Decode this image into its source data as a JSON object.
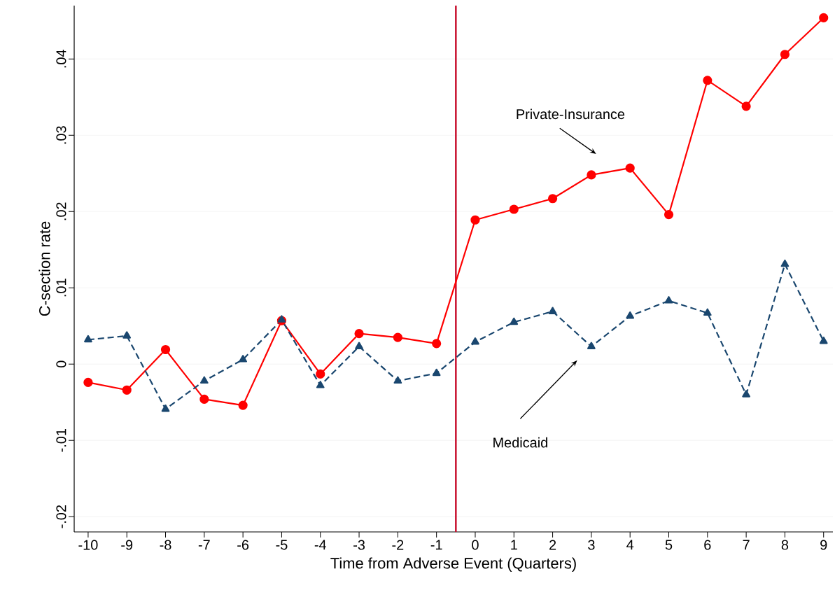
{
  "chart_data": {
    "type": "line",
    "xlabel": "Time from  Adverse Event (Quarters)",
    "ylabel": "C-section rate",
    "x": [
      -10,
      -9,
      -8,
      -7,
      -6,
      -5,
      -4,
      -3,
      -2,
      -1,
      0,
      1,
      2,
      3,
      4,
      5,
      6,
      7,
      8,
      9
    ],
    "series": [
      {
        "color": "#ff0000",
        "marker": "circle",
        "line_style": "solid",
        "values": [
          -0.0024,
          -0.0034,
          0.0019,
          -0.0046,
          -0.0054,
          0.0057,
          -0.0013,
          0.004,
          0.0035,
          0.0027,
          0.0189,
          0.0203,
          0.0217,
          0.0248,
          0.0257,
          0.0196,
          0.0372,
          0.0338,
          0.0406,
          0.0454
        ]
      },
      {
        "color": "#1a476f",
        "marker": "triangle",
        "line_style": "dashed",
        "values": [
          0.0032,
          0.0037,
          -0.0059,
          -0.0022,
          0.0006,
          0.0058,
          -0.0028,
          0.0023,
          -0.0022,
          -0.0012,
          0.0029,
          0.0055,
          0.0069,
          0.0023,
          0.0063,
          0.0083,
          0.0067,
          -0.004,
          0.0131,
          0.003
        ]
      }
    ],
    "xlim": [
      -10.36,
      9.24
    ],
    "ylim": [
      -0.022,
      0.047
    ],
    "xticks": [
      -10,
      -9,
      -8,
      -7,
      -6,
      -5,
      -4,
      -3,
      -2,
      -1,
      0,
      1,
      2,
      3,
      4,
      5,
      6,
      7,
      8,
      9
    ],
    "yticks": [
      {
        "value": -0.02,
        "label": "-.02"
      },
      {
        "value": -0.01,
        "label": "-.01"
      },
      {
        "value": 0,
        "label": "0"
      },
      {
        "value": 0.01,
        "label": ".01"
      },
      {
        "value": 0.02,
        "label": ".02"
      },
      {
        "value": 0.03,
        "label": ".03"
      },
      {
        "value": 0.04,
        "label": ".04"
      }
    ],
    "grid": "y",
    "ref_lines": [
      {
        "axis": "x",
        "value": -0.5,
        "color": "#c8102e"
      }
    ],
    "annotations": [
      "Private-Insurance",
      "Medicaid"
    ]
  }
}
